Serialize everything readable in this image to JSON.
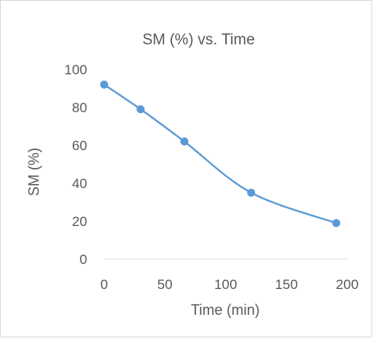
{
  "chart_data": {
    "type": "scatter",
    "title": "SM (%) vs. Time",
    "xlabel": "Time (min)",
    "ylabel": "SM (%)",
    "xlim": [
      0,
      200
    ],
    "ylim": [
      0,
      100
    ],
    "xticks": [
      0,
      50,
      100,
      150,
      200
    ],
    "yticks": [
      0,
      20,
      40,
      60,
      80,
      100
    ],
    "grid": false,
    "legend": "none",
    "smooth_line": true,
    "series": [
      {
        "x": [
          0,
          30,
          66,
          121,
          191
        ],
        "y": [
          92,
          79,
          62,
          35,
          19
        ],
        "color": "#5b9bd5"
      }
    ]
  }
}
